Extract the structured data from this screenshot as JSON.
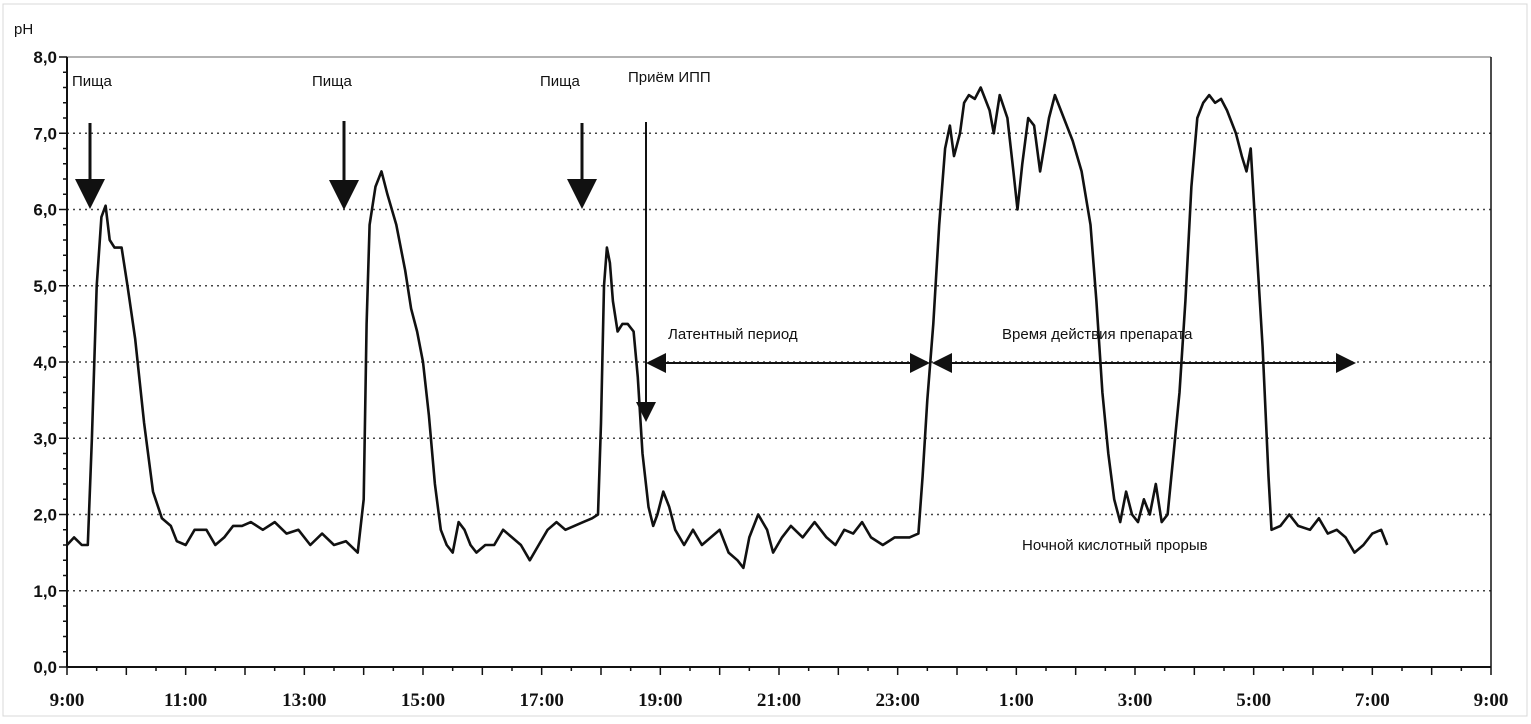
{
  "chart_data": {
    "type": "line",
    "title": "",
    "ylabel": "pH",
    "xlabel": "",
    "ylim": [
      0,
      8
    ],
    "xlim_hours": [
      9,
      33
    ],
    "grid": "horizontal dotted",
    "y_ticks": [
      "0,0",
      "1,0",
      "2,0",
      "3,0",
      "4,0",
      "5,0",
      "6,0",
      "7,0",
      "8,0"
    ],
    "x_ticks": [
      "9:00",
      "11:00",
      "13:00",
      "15:00",
      "17:00",
      "19:00",
      "21:00",
      "23:00",
      "1:00",
      "3:00",
      "5:00",
      "7:00",
      "9:00"
    ],
    "series": [
      {
        "color": "#111111",
        "points": [
          [
            9.0,
            1.6
          ],
          [
            9.12,
            1.7
          ],
          [
            9.25,
            1.6
          ],
          [
            9.35,
            1.6
          ],
          [
            9.42,
            3.0
          ],
          [
            9.5,
            5.0
          ],
          [
            9.58,
            5.9
          ],
          [
            9.65,
            6.05
          ],
          [
            9.72,
            5.6
          ],
          [
            9.8,
            5.5
          ],
          [
            9.92,
            5.5
          ],
          [
            10.02,
            5.0
          ],
          [
            10.15,
            4.3
          ],
          [
            10.3,
            3.2
          ],
          [
            10.45,
            2.3
          ],
          [
            10.6,
            1.95
          ],
          [
            10.75,
            1.85
          ],
          [
            10.85,
            1.65
          ],
          [
            11.0,
            1.6
          ],
          [
            11.15,
            1.8
          ],
          [
            11.35,
            1.8
          ],
          [
            11.5,
            1.6
          ],
          [
            11.65,
            1.7
          ],
          [
            11.8,
            1.85
          ],
          [
            11.95,
            1.85
          ],
          [
            12.1,
            1.9
          ],
          [
            12.3,
            1.8
          ],
          [
            12.5,
            1.9
          ],
          [
            12.7,
            1.75
          ],
          [
            12.9,
            1.8
          ],
          [
            13.1,
            1.6
          ],
          [
            13.3,
            1.75
          ],
          [
            13.5,
            1.6
          ],
          [
            13.7,
            1.65
          ],
          [
            13.9,
            1.5
          ],
          [
            14.0,
            2.2
          ],
          [
            14.05,
            4.5
          ],
          [
            14.1,
            5.8
          ],
          [
            14.2,
            6.3
          ],
          [
            14.3,
            6.5
          ],
          [
            14.4,
            6.2
          ],
          [
            14.55,
            5.8
          ],
          [
            14.7,
            5.2
          ],
          [
            14.8,
            4.7
          ],
          [
            14.9,
            4.4
          ],
          [
            15.0,
            4.0
          ],
          [
            15.1,
            3.3
          ],
          [
            15.2,
            2.4
          ],
          [
            15.3,
            1.8
          ],
          [
            15.4,
            1.6
          ],
          [
            15.5,
            1.5
          ],
          [
            15.6,
            1.9
          ],
          [
            15.7,
            1.8
          ],
          [
            15.8,
            1.6
          ],
          [
            15.9,
            1.5
          ],
          [
            16.05,
            1.6
          ],
          [
            16.2,
            1.6
          ],
          [
            16.35,
            1.8
          ],
          [
            16.5,
            1.7
          ],
          [
            16.65,
            1.6
          ],
          [
            16.8,
            1.4
          ],
          [
            16.95,
            1.6
          ],
          [
            17.1,
            1.8
          ],
          [
            17.25,
            1.9
          ],
          [
            17.4,
            1.8
          ],
          [
            17.55,
            1.85
          ],
          [
            17.7,
            1.9
          ],
          [
            17.85,
            1.95
          ],
          [
            17.95,
            2.0
          ],
          [
            18.0,
            3.2
          ],
          [
            18.05,
            5.0
          ],
          [
            18.1,
            5.5
          ],
          [
            18.15,
            5.3
          ],
          [
            18.2,
            4.8
          ],
          [
            18.28,
            4.4
          ],
          [
            18.36,
            4.5
          ],
          [
            18.45,
            4.5
          ],
          [
            18.55,
            4.4
          ],
          [
            18.62,
            3.8
          ],
          [
            18.7,
            2.8
          ],
          [
            18.8,
            2.1
          ],
          [
            18.88,
            1.85
          ],
          [
            18.95,
            2.0
          ],
          [
            19.05,
            2.3
          ],
          [
            19.15,
            2.1
          ],
          [
            19.25,
            1.8
          ],
          [
            19.4,
            1.6
          ],
          [
            19.55,
            1.8
          ],
          [
            19.7,
            1.6
          ],
          [
            19.85,
            1.7
          ],
          [
            20.0,
            1.8
          ],
          [
            20.15,
            1.5
          ],
          [
            20.3,
            1.4
          ],
          [
            20.4,
            1.3
          ],
          [
            20.5,
            1.7
          ],
          [
            20.65,
            2.0
          ],
          [
            20.8,
            1.8
          ],
          [
            20.9,
            1.5
          ],
          [
            21.05,
            1.7
          ],
          [
            21.2,
            1.85
          ],
          [
            21.4,
            1.7
          ],
          [
            21.6,
            1.9
          ],
          [
            21.8,
            1.7
          ],
          [
            21.95,
            1.6
          ],
          [
            22.1,
            1.8
          ],
          [
            22.25,
            1.75
          ],
          [
            22.4,
            1.9
          ],
          [
            22.55,
            1.7
          ],
          [
            22.75,
            1.6
          ],
          [
            22.95,
            1.7
          ],
          [
            23.2,
            1.7
          ],
          [
            23.35,
            1.75
          ],
          [
            23.42,
            2.5
          ],
          [
            23.5,
            3.5
          ],
          [
            23.6,
            4.5
          ],
          [
            23.7,
            5.8
          ],
          [
            23.8,
            6.8
          ],
          [
            23.88,
            7.1
          ],
          [
            23.95,
            6.7
          ],
          [
            24.05,
            7.0
          ],
          [
            24.12,
            7.4
          ],
          [
            24.2,
            7.5
          ],
          [
            24.3,
            7.45
          ],
          [
            24.4,
            7.6
          ],
          [
            24.55,
            7.3
          ],
          [
            24.62,
            7.0
          ],
          [
            24.72,
            7.5
          ],
          [
            24.85,
            7.2
          ],
          [
            24.95,
            6.5
          ],
          [
            25.02,
            6.0
          ],
          [
            25.1,
            6.6
          ],
          [
            25.2,
            7.2
          ],
          [
            25.3,
            7.1
          ],
          [
            25.4,
            6.5
          ],
          [
            25.55,
            7.2
          ],
          [
            25.65,
            7.5
          ],
          [
            25.8,
            7.2
          ],
          [
            25.95,
            6.9
          ],
          [
            26.1,
            6.5
          ],
          [
            26.25,
            5.8
          ],
          [
            26.35,
            4.8
          ],
          [
            26.45,
            3.6
          ],
          [
            26.55,
            2.8
          ],
          [
            26.65,
            2.2
          ],
          [
            26.75,
            1.9
          ],
          [
            26.85,
            2.3
          ],
          [
            26.95,
            2.0
          ],
          [
            27.05,
            1.9
          ],
          [
            27.15,
            2.2
          ],
          [
            27.25,
            2.0
          ],
          [
            27.35,
            2.4
          ],
          [
            27.45,
            1.9
          ],
          [
            27.55,
            2.0
          ],
          [
            27.65,
            2.8
          ],
          [
            27.75,
            3.6
          ],
          [
            27.85,
            4.8
          ],
          [
            27.95,
            6.3
          ],
          [
            28.05,
            7.2
          ],
          [
            28.15,
            7.4
          ],
          [
            28.25,
            7.5
          ],
          [
            28.35,
            7.4
          ],
          [
            28.45,
            7.45
          ],
          [
            28.55,
            7.3
          ],
          [
            28.7,
            7.0
          ],
          [
            28.8,
            6.7
          ],
          [
            28.88,
            6.5
          ],
          [
            28.95,
            6.8
          ],
          [
            29.05,
            5.5
          ],
          [
            29.15,
            4.2
          ],
          [
            29.25,
            2.5
          ],
          [
            29.3,
            1.8
          ],
          [
            29.45,
            1.85
          ],
          [
            29.6,
            2.0
          ],
          [
            29.75,
            1.85
          ],
          [
            29.95,
            1.8
          ],
          [
            30.1,
            1.95
          ],
          [
            30.25,
            1.75
          ],
          [
            30.4,
            1.8
          ],
          [
            30.55,
            1.7
          ],
          [
            30.7,
            1.5
          ],
          [
            30.85,
            1.6
          ],
          [
            31.0,
            1.75
          ],
          [
            31.15,
            1.8
          ],
          [
            31.25,
            1.6
          ]
        ]
      }
    ],
    "annotations": {
      "food_1": "Пища",
      "food_2": "Пища",
      "food_3": "Пища",
      "ppi_intake": "Приём ИПП",
      "latent_period": "Латентный период",
      "drug_action": "Время действия препарата",
      "night_breakthrough": "Ночной кислотный прорыв"
    }
  }
}
